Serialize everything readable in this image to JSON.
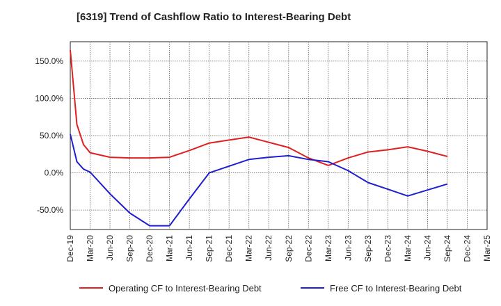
{
  "chart_data": {
    "type": "line",
    "title": "[6319]  Trend of Cashflow Ratio to Interest-Bearing Debt",
    "xlabel": "",
    "ylabel": "",
    "x_ticks": [
      "Dec-19",
      "Mar-20",
      "Jun-20",
      "Sep-20",
      "Dec-20",
      "Mar-21",
      "Jun-21",
      "Sep-21",
      "Dec-21",
      "Mar-22",
      "Jun-22",
      "Sep-22",
      "Dec-22",
      "Mar-23",
      "Jun-23",
      "Sep-23",
      "Dec-23",
      "Mar-24",
      "Jun-24",
      "Sep-24",
      "Dec-24",
      "Mar-25"
    ],
    "y_ticks": [
      "150.0%",
      "100.0%",
      "50.0%",
      "0.0%",
      "-50.0%"
    ],
    "y_tick_values": [
      150,
      100,
      50,
      0,
      -50
    ],
    "ylim": [
      -76,
      176
    ],
    "grid": true,
    "legend": "bottom",
    "series": [
      {
        "name": "Operating CF to Interest-Bearing Debt",
        "color": "#e02020",
        "points": [
          [
            "Dec-19",
            165
          ],
          [
            "Jan-20",
            65
          ],
          [
            "Feb-20",
            38
          ],
          [
            "Mar-20",
            27
          ],
          [
            "Jun-20",
            21
          ],
          [
            "Sep-20",
            20
          ],
          [
            "Dec-20",
            20
          ],
          [
            "Mar-21",
            21
          ],
          [
            "Jun-21",
            30
          ],
          [
            "Sep-21",
            40
          ],
          [
            "Dec-21",
            44
          ],
          [
            "Mar-22",
            48
          ],
          [
            "Jun-22",
            41
          ],
          [
            "Sep-22",
            34
          ],
          [
            "Dec-22",
            20
          ],
          [
            "Mar-23",
            10
          ],
          [
            "Jun-23",
            20
          ],
          [
            "Sep-23",
            28
          ],
          [
            "Dec-23",
            31
          ],
          [
            "Mar-24",
            35
          ],
          [
            "Jun-24",
            29
          ],
          [
            "Sep-24",
            22
          ]
        ]
      },
      {
        "name": "Free CF to Interest-Bearing Debt",
        "color": "#1f1fd0",
        "points": [
          [
            "Dec-19",
            52
          ],
          [
            "Jan-20",
            15
          ],
          [
            "Feb-20",
            5
          ],
          [
            "Mar-20",
            1
          ],
          [
            "Jun-20",
            -28
          ],
          [
            "Sep-20",
            -54
          ],
          [
            "Dec-20",
            -71
          ],
          [
            "Mar-21",
            -71
          ],
          [
            "Jun-21",
            -35
          ],
          [
            "Sep-21",
            0
          ],
          [
            "Dec-21",
            9
          ],
          [
            "Mar-22",
            18
          ],
          [
            "Jun-22",
            21
          ],
          [
            "Sep-22",
            23
          ],
          [
            "Dec-22",
            18
          ],
          [
            "Mar-23",
            15
          ],
          [
            "Jun-23",
            3
          ],
          [
            "Sep-23",
            -13
          ],
          [
            "Dec-23",
            -22
          ],
          [
            "Mar-24",
            -31
          ],
          [
            "Jun-24",
            -23
          ],
          [
            "Sep-24",
            -15
          ]
        ]
      }
    ]
  }
}
